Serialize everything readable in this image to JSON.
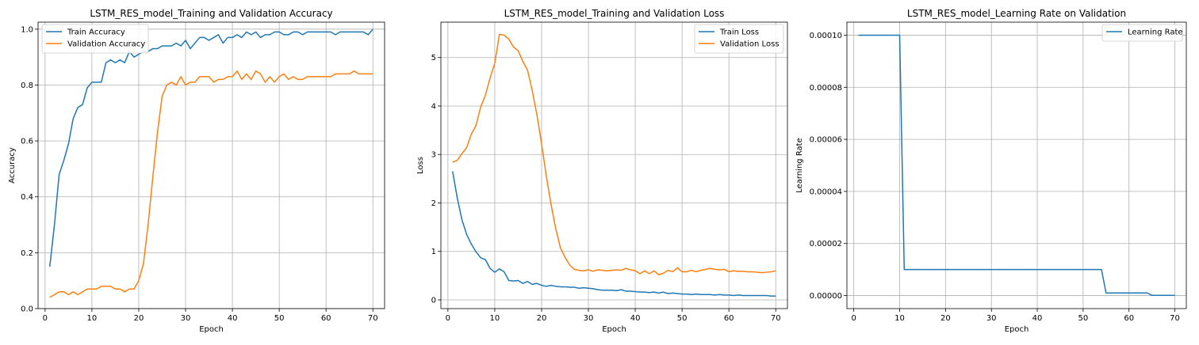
{
  "colors": {
    "blue": "#1f77b4",
    "orange": "#ff7f0e",
    "grid": "#b0b0b0",
    "frame": "#000000"
  },
  "chart_data": [
    {
      "type": "line",
      "title": "LSTM_RES_model_Training and Validation Accuracy",
      "xlabel": "Epoch",
      "ylabel": "Accuracy",
      "xlim": [
        -1.5,
        72.5
      ],
      "ylim": [
        0.0,
        1.025
      ],
      "xticks": [
        0,
        10,
        20,
        30,
        40,
        50,
        60,
        70
      ],
      "xtick_labels": [
        "0",
        "10",
        "20",
        "30",
        "40",
        "50",
        "60",
        "70"
      ],
      "yticks": [
        0.0,
        0.2,
        0.4,
        0.6,
        0.8,
        1.0
      ],
      "ytick_labels": [
        "0.0",
        "0.2",
        "0.4",
        "0.6",
        "0.8",
        "1.0"
      ],
      "grid": true,
      "legend_position": "top-left",
      "x": [
        1,
        2,
        3,
        4,
        5,
        6,
        7,
        8,
        9,
        10,
        11,
        12,
        13,
        14,
        15,
        16,
        17,
        18,
        19,
        20,
        21,
        22,
        23,
        24,
        25,
        26,
        27,
        28,
        29,
        30,
        31,
        32,
        33,
        34,
        35,
        36,
        37,
        38,
        39,
        40,
        41,
        42,
        43,
        44,
        45,
        46,
        47,
        48,
        49,
        50,
        51,
        52,
        53,
        54,
        55,
        56,
        57,
        58,
        59,
        60,
        61,
        62,
        63,
        64,
        65,
        66,
        67,
        68,
        69,
        70
      ],
      "series": [
        {
          "name": "Train Accuracy",
          "color": "#1f77b4",
          "values": [
            0.15,
            0.3,
            0.48,
            0.53,
            0.59,
            0.68,
            0.72,
            0.73,
            0.79,
            0.81,
            0.81,
            0.81,
            0.88,
            0.89,
            0.88,
            0.89,
            0.88,
            0.92,
            0.9,
            0.91,
            0.92,
            0.92,
            0.93,
            0.93,
            0.94,
            0.94,
            0.94,
            0.95,
            0.94,
            0.96,
            0.93,
            0.95,
            0.97,
            0.97,
            0.96,
            0.97,
            0.98,
            0.95,
            0.97,
            0.97,
            0.98,
            0.97,
            0.99,
            0.98,
            0.99,
            0.97,
            0.98,
            0.98,
            0.99,
            0.99,
            0.98,
            0.98,
            0.99,
            0.99,
            0.98,
            0.99,
            0.99,
            0.99,
            0.99,
            0.99,
            0.99,
            0.98,
            0.99,
            0.99,
            0.99,
            0.99,
            0.99,
            0.99,
            0.98,
            1.0
          ]
        },
        {
          "name": "Validation Accuracy",
          "color": "#ff7f0e",
          "values": [
            0.04,
            0.05,
            0.06,
            0.06,
            0.05,
            0.06,
            0.05,
            0.06,
            0.07,
            0.07,
            0.07,
            0.08,
            0.08,
            0.08,
            0.07,
            0.07,
            0.06,
            0.07,
            0.07,
            0.1,
            0.16,
            0.3,
            0.47,
            0.63,
            0.76,
            0.8,
            0.81,
            0.8,
            0.83,
            0.8,
            0.81,
            0.81,
            0.83,
            0.83,
            0.83,
            0.81,
            0.82,
            0.82,
            0.83,
            0.83,
            0.85,
            0.82,
            0.84,
            0.82,
            0.85,
            0.84,
            0.81,
            0.83,
            0.81,
            0.83,
            0.84,
            0.82,
            0.83,
            0.82,
            0.82,
            0.83,
            0.83,
            0.83,
            0.83,
            0.83,
            0.83,
            0.84,
            0.84,
            0.84,
            0.84,
            0.85,
            0.84,
            0.84,
            0.84,
            0.84
          ]
        }
      ]
    },
    {
      "type": "line",
      "title": "LSTM_RES_model_Training and Validation Loss",
      "xlabel": "Epoch",
      "ylabel": "Loss",
      "xlim": [
        -1.5,
        72.5
      ],
      "ylim": [
        -0.18,
        5.73
      ],
      "xticks": [
        0,
        10,
        20,
        30,
        40,
        50,
        60,
        70
      ],
      "xtick_labels": [
        "0",
        "10",
        "20",
        "30",
        "40",
        "50",
        "60",
        "70"
      ],
      "yticks": [
        0,
        1,
        2,
        3,
        4,
        5
      ],
      "ytick_labels": [
        "0",
        "1",
        "2",
        "3",
        "4",
        "5"
      ],
      "grid": true,
      "legend_position": "top-right",
      "x": [
        1,
        2,
        3,
        4,
        5,
        6,
        7,
        8,
        9,
        10,
        11,
        12,
        13,
        14,
        15,
        16,
        17,
        18,
        19,
        20,
        21,
        22,
        23,
        24,
        25,
        26,
        27,
        28,
        29,
        30,
        31,
        32,
        33,
        34,
        35,
        36,
        37,
        38,
        39,
        40,
        41,
        42,
        43,
        44,
        45,
        46,
        47,
        48,
        49,
        50,
        51,
        52,
        53,
        54,
        55,
        56,
        57,
        58,
        59,
        60,
        61,
        62,
        63,
        64,
        65,
        66,
        67,
        68,
        69,
        70
      ],
      "series": [
        {
          "name": "Train Loss",
          "color": "#1f77b4",
          "values": [
            2.65,
            2.1,
            1.65,
            1.35,
            1.15,
            0.99,
            0.87,
            0.83,
            0.65,
            0.57,
            0.64,
            0.58,
            0.4,
            0.39,
            0.4,
            0.34,
            0.38,
            0.32,
            0.34,
            0.3,
            0.28,
            0.3,
            0.28,
            0.27,
            0.27,
            0.26,
            0.26,
            0.24,
            0.25,
            0.24,
            0.23,
            0.21,
            0.2,
            0.2,
            0.2,
            0.19,
            0.21,
            0.18,
            0.18,
            0.17,
            0.16,
            0.16,
            0.15,
            0.16,
            0.14,
            0.16,
            0.13,
            0.14,
            0.13,
            0.12,
            0.12,
            0.11,
            0.12,
            0.11,
            0.11,
            0.11,
            0.1,
            0.11,
            0.1,
            0.1,
            0.09,
            0.1,
            0.09,
            0.09,
            0.09,
            0.09,
            0.09,
            0.09,
            0.08,
            0.08
          ]
        },
        {
          "name": "Validation Loss",
          "color": "#ff7f0e",
          "values": [
            2.84,
            2.88,
            3.02,
            3.14,
            3.42,
            3.6,
            3.98,
            4.22,
            4.58,
            4.88,
            5.48,
            5.46,
            5.38,
            5.22,
            5.14,
            4.92,
            4.74,
            4.32,
            3.82,
            3.22,
            2.56,
            1.98,
            1.48,
            1.08,
            0.88,
            0.72,
            0.63,
            0.61,
            0.6,
            0.62,
            0.59,
            0.62,
            0.61,
            0.6,
            0.61,
            0.62,
            0.61,
            0.65,
            0.62,
            0.6,
            0.54,
            0.6,
            0.54,
            0.6,
            0.52,
            0.55,
            0.61,
            0.58,
            0.66,
            0.58,
            0.58,
            0.61,
            0.58,
            0.61,
            0.63,
            0.65,
            0.63,
            0.62,
            0.63,
            0.58,
            0.6,
            0.59,
            0.59,
            0.58,
            0.58,
            0.57,
            0.56,
            0.57,
            0.58,
            0.6
          ]
        }
      ]
    },
    {
      "type": "line",
      "title": "LSTM_RES_model_Learning Rate on Validation",
      "xlabel": "Epoch",
      "ylabel": "Learning Rate",
      "xlim": [
        -1.5,
        72.5
      ],
      "ylim": [
        -5e-06,
        0.000105
      ],
      "xticks": [
        0,
        10,
        20,
        30,
        40,
        50,
        60,
        70
      ],
      "xtick_labels": [
        "0",
        "10",
        "20",
        "30",
        "40",
        "50",
        "60",
        "70"
      ],
      "yticks": [
        0.0,
        2e-05,
        4e-05,
        6e-05,
        8e-05,
        0.0001
      ],
      "ytick_labels": [
        "0.00000",
        "0.00002",
        "0.00004",
        "0.00006",
        "0.00008",
        "0.00010"
      ],
      "grid": true,
      "legend_position": "top-right",
      "x": [
        1,
        10,
        11,
        54,
        55,
        64,
        65,
        70
      ],
      "series": [
        {
          "name": "Learning Rate",
          "color": "#1f77b4",
          "values": [
            0.0001,
            0.0001,
            1e-05,
            1e-05,
            1e-06,
            1e-06,
            1e-07,
            1e-07
          ]
        }
      ]
    }
  ]
}
